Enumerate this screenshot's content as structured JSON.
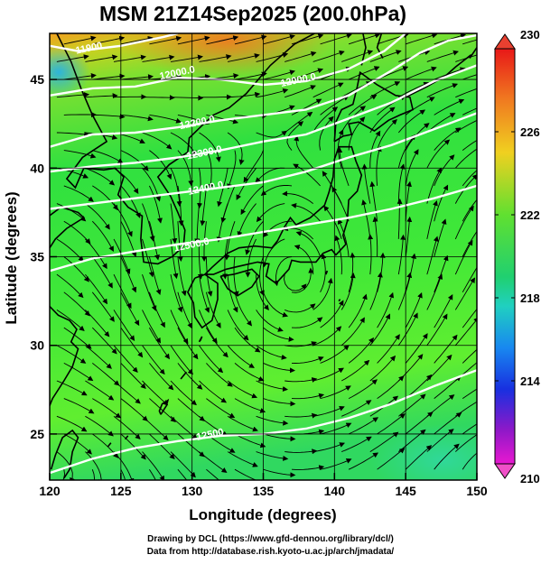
{
  "title": "MSM 21Z14Sep2025 (200.0hPa)",
  "map": {
    "xlabel": "Longitude (degrees)",
    "ylabel": "Latitude  (degrees)",
    "lon_range": [
      120,
      150
    ],
    "lat_range": [
      22.4,
      47.6
    ],
    "lon_ticks": [
      "120",
      "125",
      "130",
      "135",
      "140",
      "145",
      "150"
    ],
    "lat_ticks": [
      "25",
      "30",
      "35",
      "40",
      "45"
    ],
    "grid": true,
    "field": "temperature (shaded) with height contours and streamlines"
  },
  "colorbar": {
    "min": 210,
    "max": 230,
    "labels": [
      "230",
      "226",
      "222",
      "218",
      "214",
      "210"
    ]
  },
  "contours": [
    {
      "label": "11900",
      "lon": 122.8,
      "lat": 46.6
    },
    {
      "label": "12000.0",
      "lon": 129.0,
      "lat": 45.2
    },
    {
      "label": "12000.0",
      "lon": 137.5,
      "lat": 44.8
    },
    {
      "label": "12200.0",
      "lon": 130.4,
      "lat": 42.4
    },
    {
      "label": "12300.0",
      "lon": 130.9,
      "lat": 40.7
    },
    {
      "label": "12400.0",
      "lon": 131.0,
      "lat": 38.7
    },
    {
      "label": "12500.0",
      "lon": 130.0,
      "lat": 35.5
    },
    {
      "label": "12500",
      "lon": 131.3,
      "lat": 24.8
    }
  ],
  "credits": {
    "line1": "Drawing by DCL (https://www.gfd-dennou.org/library/dcl/)",
    "line2": "Data from http://database.rish.kyoto-u.ac.jp/arch/jmadata/"
  }
}
